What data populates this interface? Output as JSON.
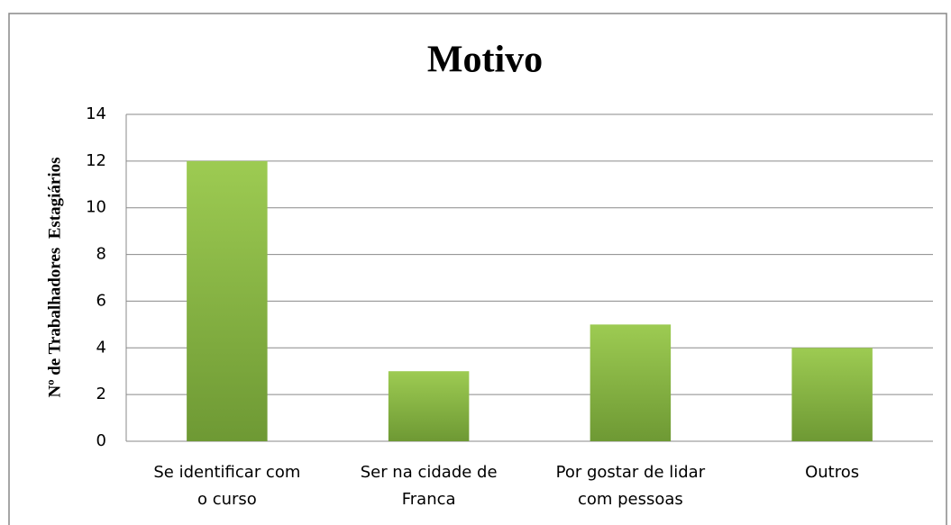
{
  "chart_data": {
    "type": "bar",
    "title": "Motivo",
    "y_label": "Nº de Trabalhadores  Estagiários",
    "categories": [
      "Se identificar com\no curso",
      "Ser na cidade de\nFranca",
      "Por gostar de lidar\ncom pessoas",
      "Outros"
    ],
    "values": [
      12,
      3,
      5,
      4
    ],
    "color": "#8cbc48",
    "ylim": [
      0,
      14
    ],
    "yticks": [
      0,
      2,
      4,
      6,
      8,
      10,
      12,
      14
    ],
    "grid": true
  }
}
